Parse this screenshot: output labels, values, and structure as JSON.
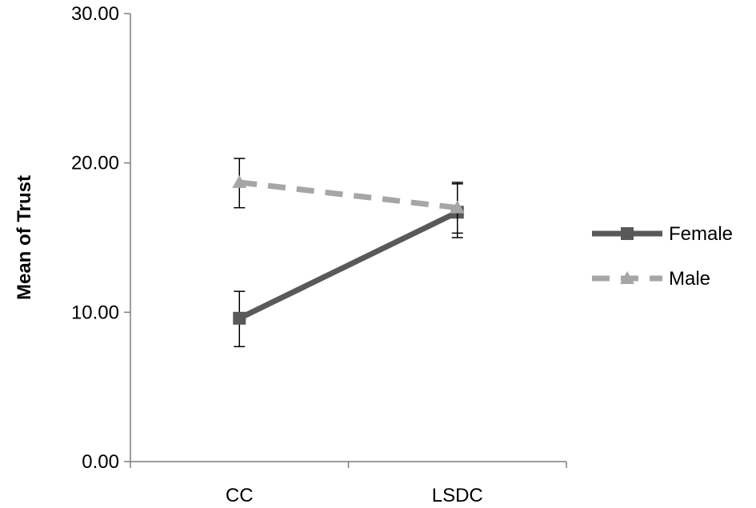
{
  "chart_data": {
    "type": "line",
    "categories": [
      "CC",
      "LSDC"
    ],
    "ylabel": "Mean of Trust",
    "xlabel": "",
    "ylim": [
      0,
      30
    ],
    "yticks": [
      "0.00",
      "10.00",
      "20.00",
      "30.00"
    ],
    "grid": false,
    "legend_position": "right",
    "series": [
      {
        "name": "Female",
        "values": [
          9.6,
          16.7
        ],
        "error_low": [
          7.7,
          15.0
        ],
        "error_high": [
          11.4,
          18.7
        ],
        "color": "#595959",
        "dash": "solid",
        "marker": "square"
      },
      {
        "name": "Male",
        "values": [
          18.7,
          17.0
        ],
        "error_low": [
          17.0,
          15.3
        ],
        "error_high": [
          20.3,
          18.6
        ],
        "color": "#a6a6a6",
        "dash": "dashed",
        "marker": "triangle"
      }
    ]
  }
}
